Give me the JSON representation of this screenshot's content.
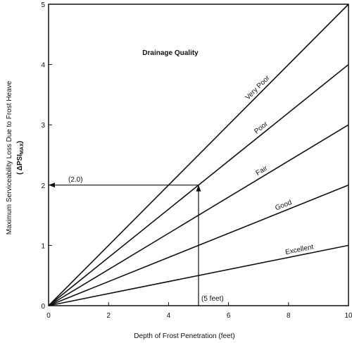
{
  "chart_data": {
    "type": "line",
    "title": "Drainage Quality",
    "xlabel": "Depth of Frost Penetration (feet)",
    "ylabel": "Maximum Serviceability Loss Due to Frost Heave",
    "ylabel2": "( ΔPSI",
    "ylabel2_sub": "MAX",
    "ylabel2_end": ")",
    "xlim": [
      0,
      10
    ],
    "ylim": [
      0,
      5
    ],
    "x_ticks": [
      "0",
      "2",
      "4",
      "6",
      "8",
      "10"
    ],
    "y_ticks": [
      "0",
      "1",
      "2",
      "3",
      "4",
      "5"
    ],
    "grid": false,
    "series": [
      {
        "name": "Very Poor",
        "x": [
          0,
          10
        ],
        "y": [
          0,
          5.0
        ]
      },
      {
        "name": "Poor",
        "x": [
          0,
          10
        ],
        "y": [
          0,
          4.0
        ]
      },
      {
        "name": "Fair",
        "x": [
          0,
          10
        ],
        "y": [
          0,
          3.0
        ]
      },
      {
        "name": "Good",
        "x": [
          0,
          10
        ],
        "y": [
          0,
          2.0
        ]
      },
      {
        "name": "Excellent",
        "x": [
          0,
          10
        ],
        "y": [
          0,
          1.0
        ]
      }
    ],
    "example": {
      "x": 5,
      "y": 2.0,
      "x_label": "(5 feet)",
      "y_label": "(2.0)"
    }
  }
}
